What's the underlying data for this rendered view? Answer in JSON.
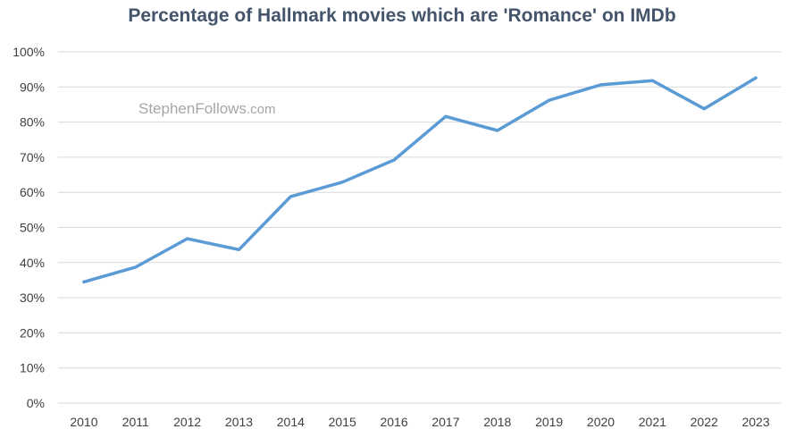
{
  "chart_data": {
    "type": "line",
    "title": "Percentage of Hallmark movies which are 'Romance' on IMDb",
    "xlabel": "",
    "ylabel": "",
    "x": [
      2010,
      2011,
      2012,
      2013,
      2014,
      2015,
      2016,
      2017,
      2018,
      2019,
      2020,
      2021,
      2022,
      2023
    ],
    "x_tick_labels": [
      "2010",
      "2011",
      "2012",
      "2013",
      "2014",
      "2015",
      "2016",
      "2017",
      "2018",
      "2019",
      "2020",
      "2021",
      "2022",
      "2023"
    ],
    "series": [
      {
        "color": "#5b9bd5",
        "values": [
          34.5,
          38.7,
          46.8,
          43.7,
          58.8,
          62.9,
          69.2,
          81.6,
          77.6,
          86.2,
          90.6,
          91.8,
          83.8,
          92.6
        ]
      }
    ],
    "ylim": [
      0,
      100
    ],
    "y_ticks": [
      0,
      10,
      20,
      30,
      40,
      50,
      60,
      70,
      80,
      90,
      100
    ],
    "y_tick_labels": [
      "0%",
      "10%",
      "20%",
      "30%",
      "40%",
      "50%",
      "60%",
      "70%",
      "80%",
      "90%",
      "100%"
    ],
    "grid": true,
    "legend": "none",
    "gridline_color": "#d9d9d9",
    "title_color": "#44546a"
  },
  "watermark": {
    "name": "StephenFollows",
    "domain": ".com"
  }
}
